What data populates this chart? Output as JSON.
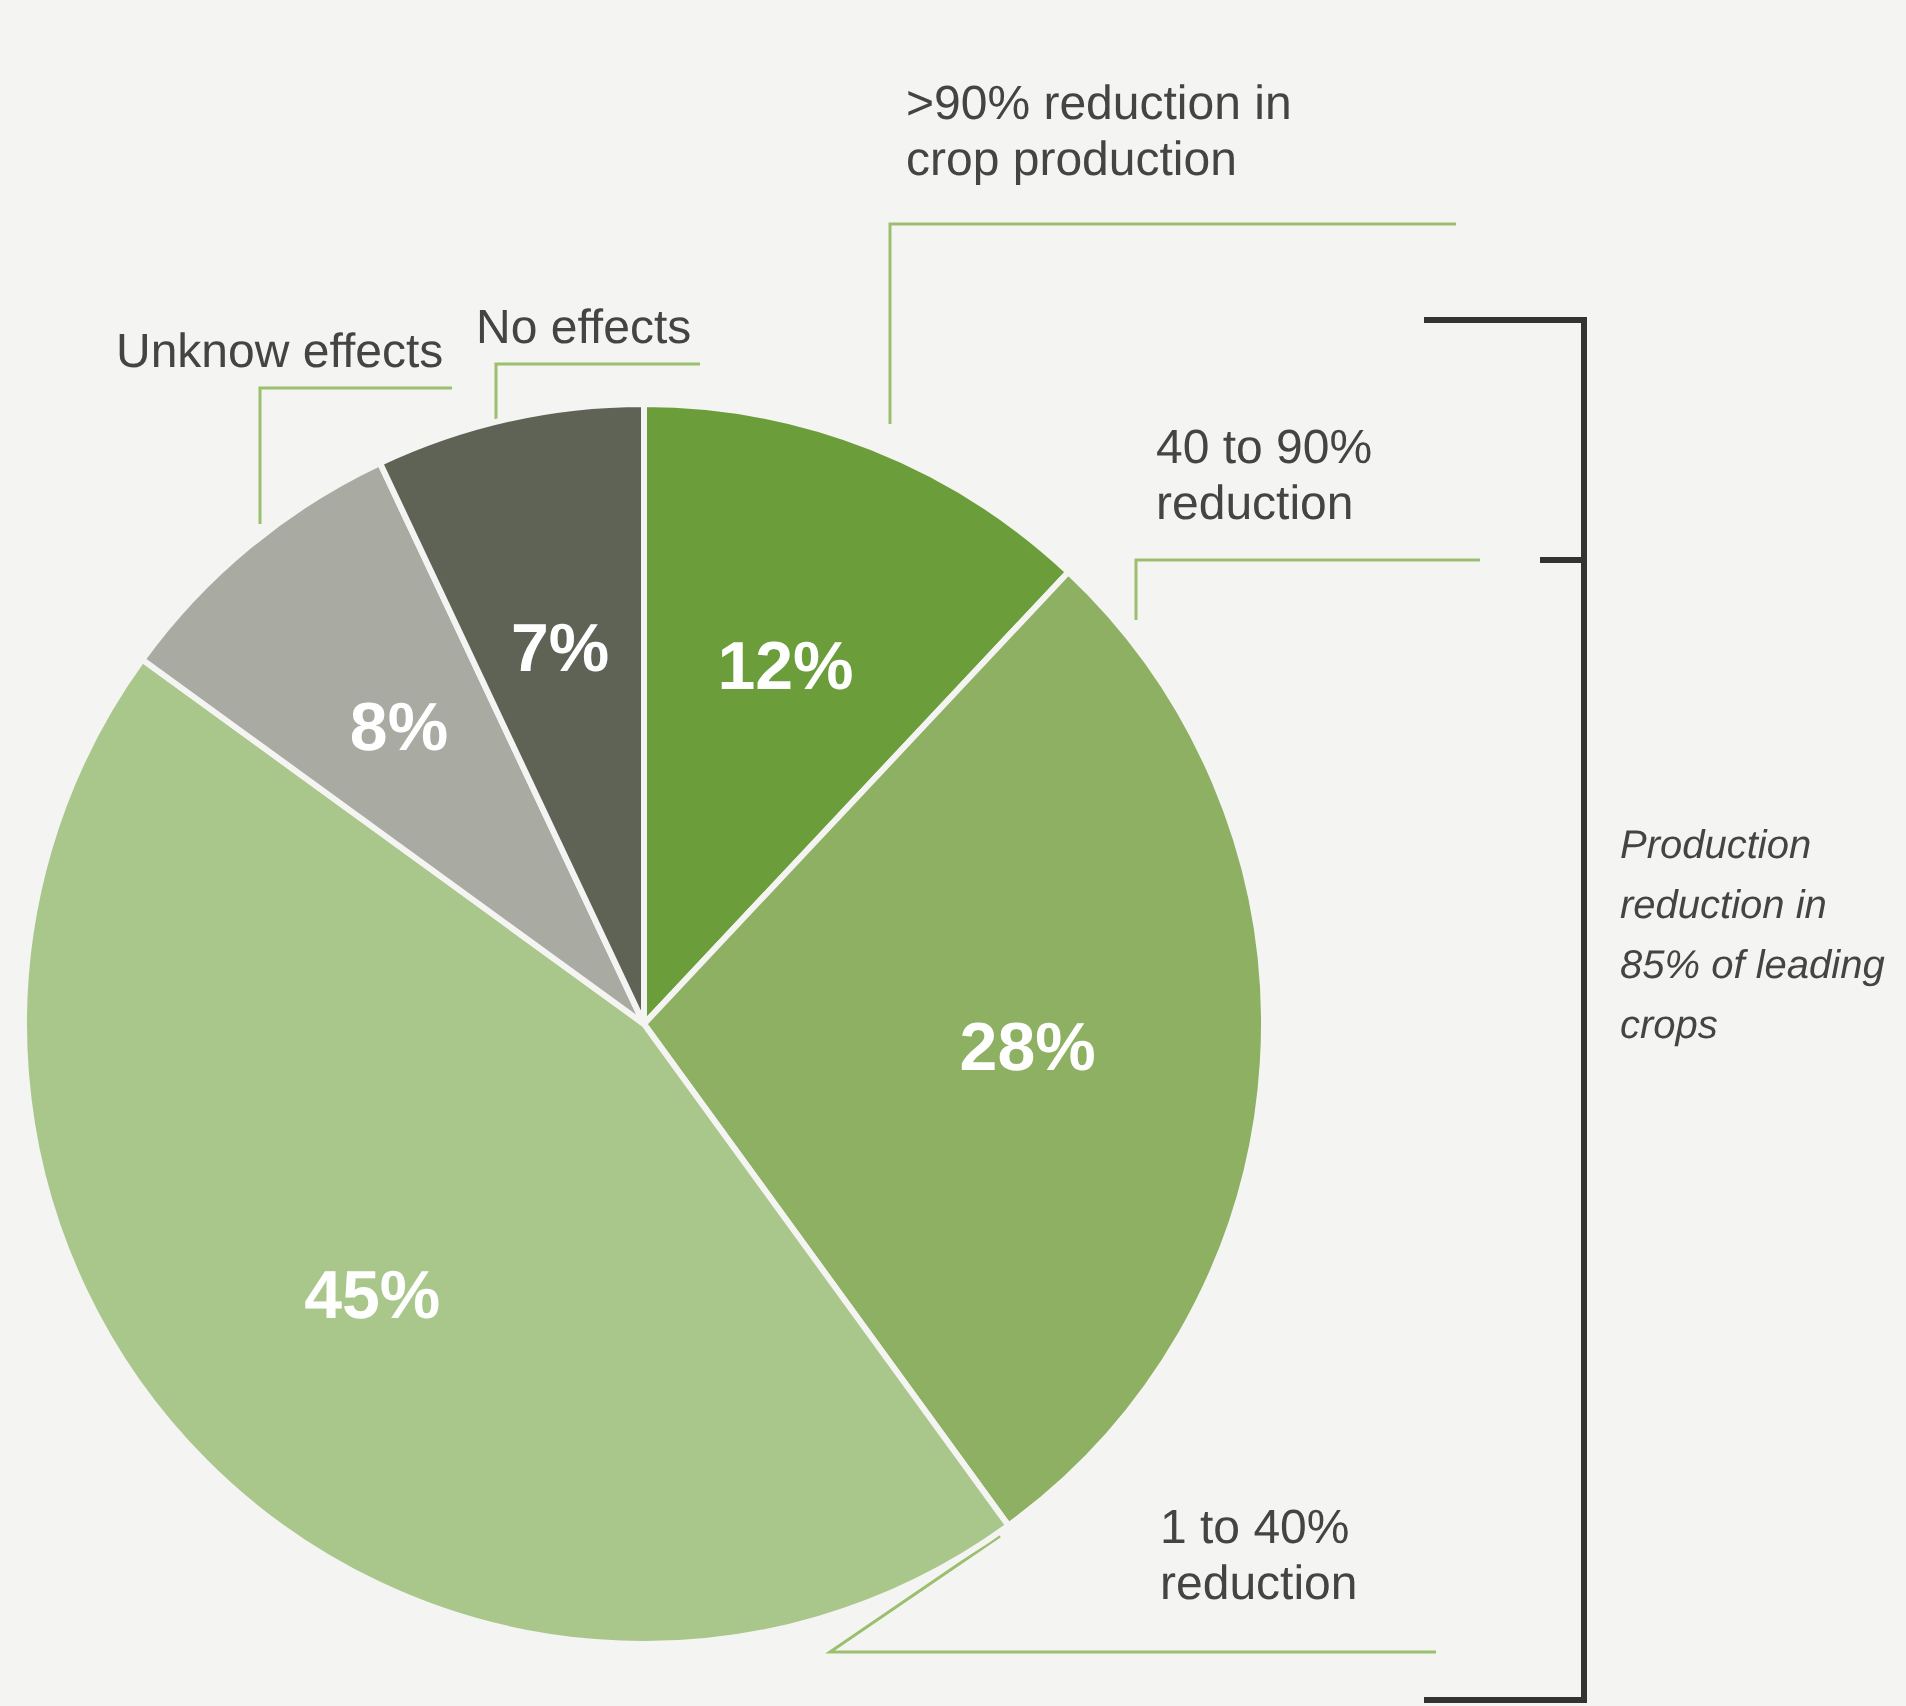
{
  "chart_data": {
    "type": "pie",
    "categories": [
      ">90% reduction in crop production",
      "40 to 90% reduction",
      "1 to 40% reduction",
      "Unknow effects",
      "No effects"
    ],
    "values": [
      12,
      28,
      45,
      8,
      7
    ],
    "value_labels": [
      "12%",
      "28%",
      "45%",
      "8%",
      "7%"
    ],
    "colors": [
      "#6b9e3a",
      "#8db062",
      "#a9c68b",
      "#a9aaa2",
      "#5f6356"
    ],
    "annotations": [
      "Production reduction in 85% of leading crops"
    ],
    "legend": false
  }
}
